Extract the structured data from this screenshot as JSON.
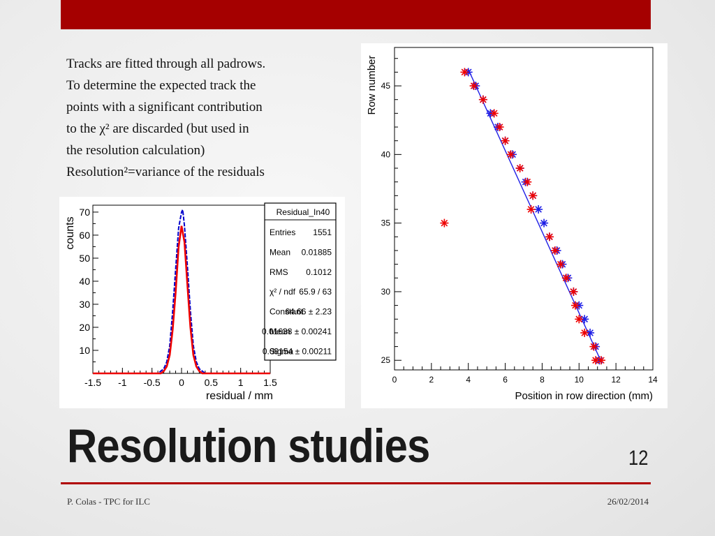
{
  "slide": {
    "title": "Resolution studies",
    "page_number": "12",
    "footer_left": "P. Colas - TPC for ILC",
    "footer_right": "26/02/2014",
    "accent_color": "#a50000",
    "body_lines": [
      "Tracks are fitted through all padrows.",
      "To determine the expected  track the",
      "points with a significant contribution",
      "to the χ² are discarded (but used in",
      "the resolution calculation)",
      "Resolution²=variance of the residuals"
    ]
  },
  "chart_data": [
    {
      "type": "line",
      "xlabel": "residual / mm",
      "ylabel": "counts",
      "xlim": [
        -1.5,
        1.5
      ],
      "ylim": [
        0,
        73
      ],
      "xticks": [
        "-1.5",
        "-1",
        "-0.5",
        "0",
        "0.5",
        "1",
        "1.5"
      ],
      "yticks": [
        "10",
        "20",
        "30",
        "40",
        "50",
        "60",
        "70"
      ],
      "series": [
        {
          "x": [
            -1.5,
            -0.4,
            -0.35,
            -0.3,
            -0.25,
            -0.2,
            -0.15,
            -0.1,
            -0.05,
            0.0,
            0.02,
            0.05,
            0.1,
            0.15,
            0.2,
            0.25,
            0.3,
            0.35,
            0.4,
            1.5
          ],
          "values": [
            0,
            0,
            1,
            2,
            5,
            12,
            27,
            45,
            63,
            70,
            71,
            64,
            46,
            27,
            12,
            5,
            2,
            1,
            0,
            0
          ],
          "color": "#0000cc"
        },
        {
          "x": [
            -1.5,
            -0.35,
            -0.3,
            -0.25,
            -0.2,
            -0.15,
            -0.1,
            -0.05,
            0.0,
            0.05,
            0.1,
            0.15,
            0.2,
            0.25,
            0.3,
            0.35,
            1.5
          ],
          "values": [
            0,
            0,
            1,
            3,
            8,
            19,
            35,
            55,
            64,
            57,
            38,
            20,
            8,
            3,
            1,
            0,
            0
          ],
          "color": "#ee0000"
        }
      ],
      "stats_box": {
        "name": "Residual_In40",
        "rows": [
          {
            "label": "Entries",
            "value": "1551"
          },
          {
            "label": "Mean",
            "value": "0.01885"
          },
          {
            "label": "RMS",
            "value": "0.1012"
          },
          {
            "label": "χ² / ndf",
            "value": "65.9 / 63"
          },
          {
            "label": "Constant",
            "value": "64.66 ± 2.23"
          },
          {
            "label": "Mean",
            "value": "0.01638 ± 0.00241"
          },
          {
            "label": "Sigma",
            "value": "0.09154 ± 0.00211"
          }
        ]
      }
    },
    {
      "type": "scatter",
      "xlabel": "Position in row direction (mm)",
      "ylabel": "Row number",
      "xlim": [
        0,
        14
      ],
      "ylim": [
        24.3,
        47.8
      ],
      "xticks": [
        "0",
        "2",
        "4",
        "6",
        "8",
        "10",
        "12",
        "14"
      ],
      "yticks": [
        "25",
        "30",
        "35",
        "40",
        "45"
      ],
      "series": [
        {
          "color": "#ee0000",
          "points": [
            [
              3.8,
              46
            ],
            [
              4.3,
              45
            ],
            [
              4.8,
              44
            ],
            [
              5.4,
              43
            ],
            [
              5.7,
              42
            ],
            [
              6.0,
              41
            ],
            [
              6.3,
              40
            ],
            [
              6.8,
              39
            ],
            [
              7.2,
              38
            ],
            [
              7.5,
              37
            ],
            [
              7.4,
              36
            ],
            [
              2.7,
              35
            ],
            [
              8.4,
              34
            ],
            [
              8.7,
              33
            ],
            [
              9.0,
              32
            ],
            [
              9.3,
              31
            ],
            [
              9.7,
              30
            ],
            [
              9.8,
              29
            ],
            [
              10.0,
              28
            ],
            [
              10.3,
              27
            ],
            [
              10.8,
              26
            ],
            [
              10.9,
              25
            ],
            [
              11.2,
              25
            ]
          ]
        },
        {
          "color": "#1e1ee6",
          "points": [
            [
              4.0,
              46
            ],
            [
              4.4,
              45
            ],
            [
              4.8,
              44
            ],
            [
              5.2,
              43
            ],
            [
              5.6,
              42
            ],
            [
              6.0,
              41
            ],
            [
              6.4,
              40
            ],
            [
              6.8,
              39
            ],
            [
              7.1,
              38
            ],
            [
              7.5,
              37
            ],
            [
              7.8,
              36
            ],
            [
              8.1,
              35
            ],
            [
              8.4,
              34
            ],
            [
              8.8,
              33
            ],
            [
              9.1,
              32
            ],
            [
              9.4,
              31
            ],
            [
              9.7,
              30
            ],
            [
              10.0,
              29
            ],
            [
              10.3,
              28
            ],
            [
              10.6,
              27
            ],
            [
              10.9,
              26
            ],
            [
              11.1,
              25
            ]
          ]
        },
        {
          "color": "#1e1ee6",
          "line": [
            [
              4.0,
              46.2
            ],
            [
              11.2,
              24.9
            ]
          ]
        }
      ]
    }
  ]
}
